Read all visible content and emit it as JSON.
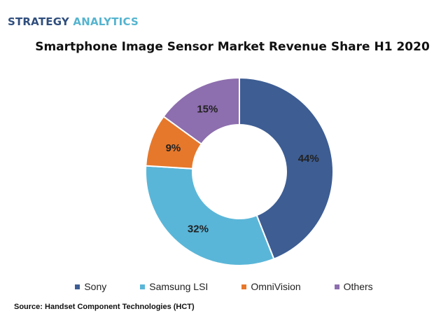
{
  "brand": {
    "part1": "STRATEGY",
    "part2": "ANALYTICS"
  },
  "source": "Source: Handset Component Technologies (HCT)",
  "chart_data": {
    "type": "pie",
    "title": "Smartphone Image  Sensor Market Revenue Share H1 2020",
    "style": "donut",
    "categories": [
      "Sony",
      "Samsung LSI",
      "OmniVision",
      "Others"
    ],
    "values": [
      44,
      32,
      9,
      15
    ],
    "labels": [
      "44%",
      "32%",
      "9%",
      "15%"
    ],
    "colors": [
      "#3d5d93",
      "#5ab6d8",
      "#e6782b",
      "#8d6eae"
    ],
    "legend": "bottom"
  }
}
